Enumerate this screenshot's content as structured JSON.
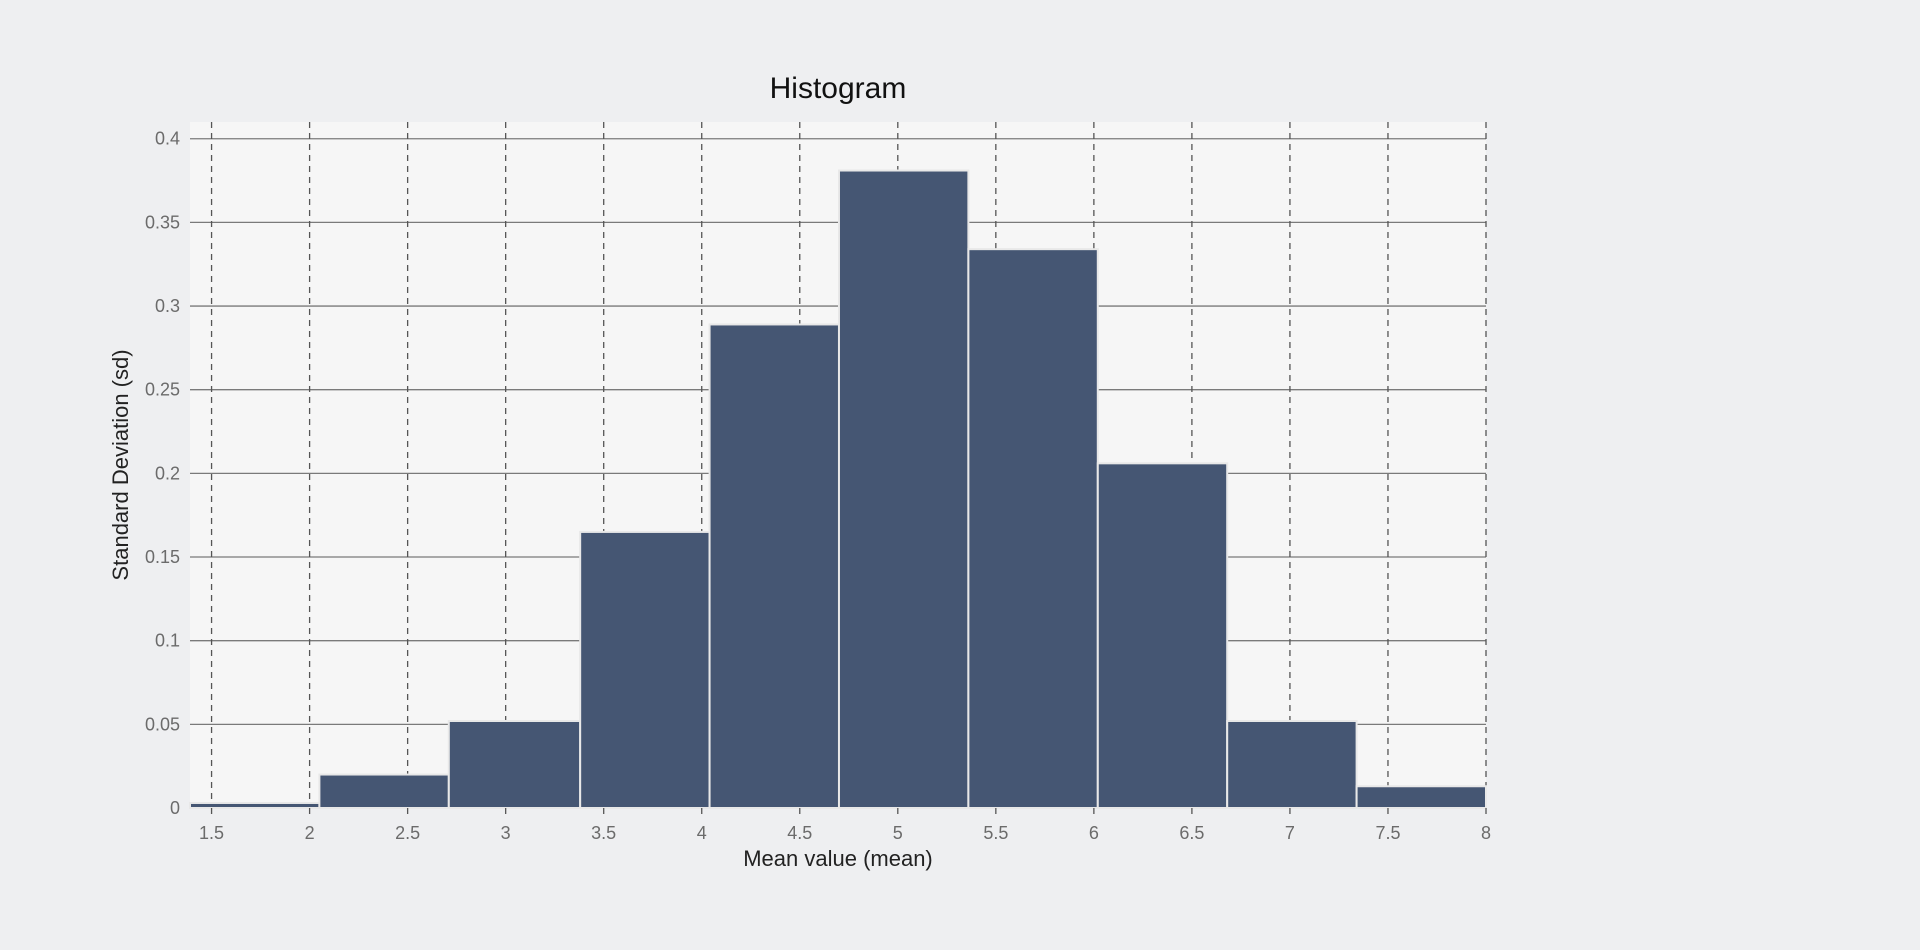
{
  "chart_data": {
    "type": "bar",
    "title": "Histogram",
    "xlabel": "Mean value (mean)",
    "ylabel": "Standard Deviation (sd)",
    "xlim": [
      1.39,
      8.0
    ],
    "ylim": [
      0,
      0.41
    ],
    "x_ticks": [
      "1.5",
      "2",
      "2.5",
      "3",
      "3.5",
      "4",
      "4.5",
      "5",
      "5.5",
      "6",
      "6.5",
      "7",
      "7.5",
      "8"
    ],
    "y_ticks": [
      "0",
      "0.05",
      "0.1",
      "0.15",
      "0.2",
      "0.25",
      "0.3",
      "0.35",
      "0.4"
    ],
    "grid": true,
    "legend": "none",
    "bins": [
      {
        "x0": 1.39,
        "x1": 2.05,
        "value": 0.003
      },
      {
        "x0": 2.05,
        "x1": 2.71,
        "value": 0.02
      },
      {
        "x0": 2.71,
        "x1": 3.38,
        "value": 0.052
      },
      {
        "x0": 3.38,
        "x1": 4.04,
        "value": 0.165
      },
      {
        "x0": 4.04,
        "x1": 4.7,
        "value": 0.289
      },
      {
        "x0": 4.7,
        "x1": 5.36,
        "value": 0.381
      },
      {
        "x0": 5.36,
        "x1": 6.02,
        "value": 0.334
      },
      {
        "x0": 6.02,
        "x1": 6.68,
        "value": 0.206
      },
      {
        "x0": 6.68,
        "x1": 7.34,
        "value": 0.052
      },
      {
        "x0": 7.34,
        "x1": 8.0,
        "value": 0.013
      }
    ],
    "colors": {
      "bar": "#455673",
      "bar_border": "#e8e8e8",
      "plot_background": "#f6f6f6",
      "gridline": "#7a7a7a"
    }
  }
}
